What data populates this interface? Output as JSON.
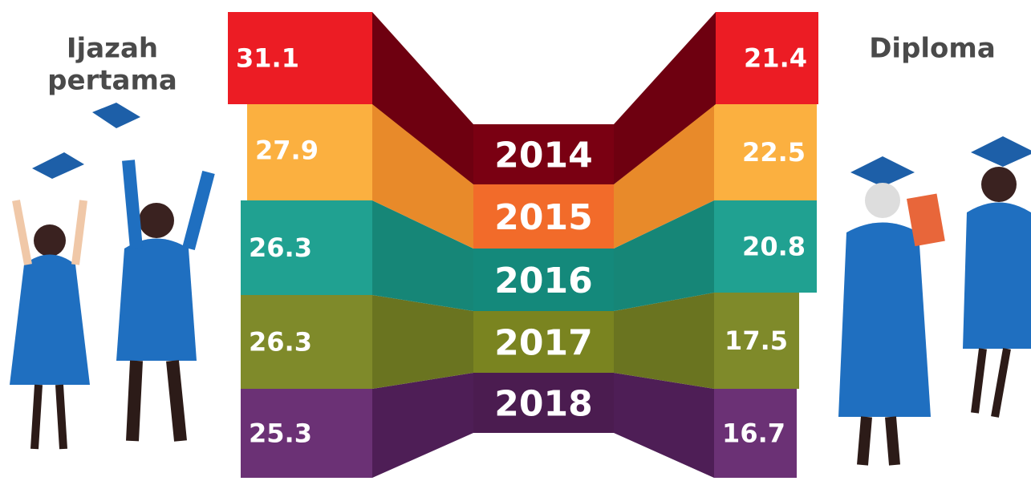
{
  "left": {
    "title_lines": [
      "Ijazah",
      "pertama"
    ]
  },
  "right": {
    "title": "Diploma"
  },
  "rows": [
    {
      "year": "2014",
      "left": 31.1,
      "right": 21.4
    },
    {
      "year": "2015",
      "left": 27.9,
      "right": 22.5
    },
    {
      "year": "2016",
      "left": 26.3,
      "right": 20.8
    },
    {
      "year": "2017",
      "left": 26.3,
      "right": 17.5
    },
    {
      "year": "2018",
      "left": 25.3,
      "right": 16.7
    }
  ]
}
